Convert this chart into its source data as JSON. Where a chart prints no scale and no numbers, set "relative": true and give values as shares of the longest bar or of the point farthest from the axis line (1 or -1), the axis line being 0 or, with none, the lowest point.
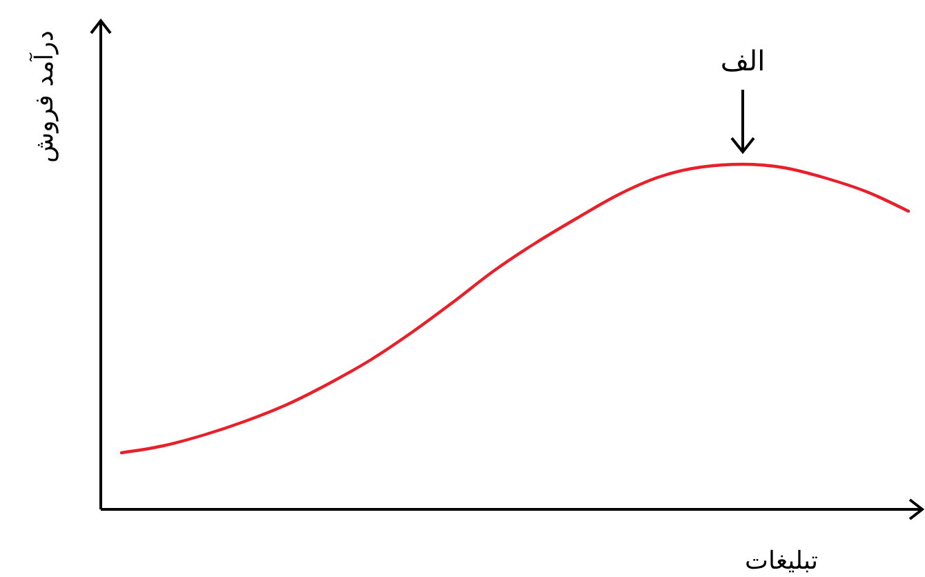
{
  "chart_data": {
    "type": "line",
    "relative": true,
    "xlabel": "تبلیغات",
    "ylabel": "درآمد فروش",
    "categories": [
      null,
      null,
      null,
      null,
      null,
      null,
      null,
      null,
      null,
      null,
      null,
      null,
      null,
      null,
      null,
      null,
      null,
      null,
      null,
      null
    ],
    "series": [
      {
        "color": "#e8202a",
        "values": [
          0.164,
          0.184,
          0.216,
          0.256,
          0.304,
          0.364,
          0.432,
          0.512,
          0.6,
          0.692,
          0.772,
          0.844,
          0.912,
          0.964,
          0.992,
          1.0,
          0.99,
          0.96,
          0.92,
          0.864
        ]
      }
    ],
    "annotations": [
      "الف"
    ],
    "marker": "none",
    "line_style": "solid"
  }
}
